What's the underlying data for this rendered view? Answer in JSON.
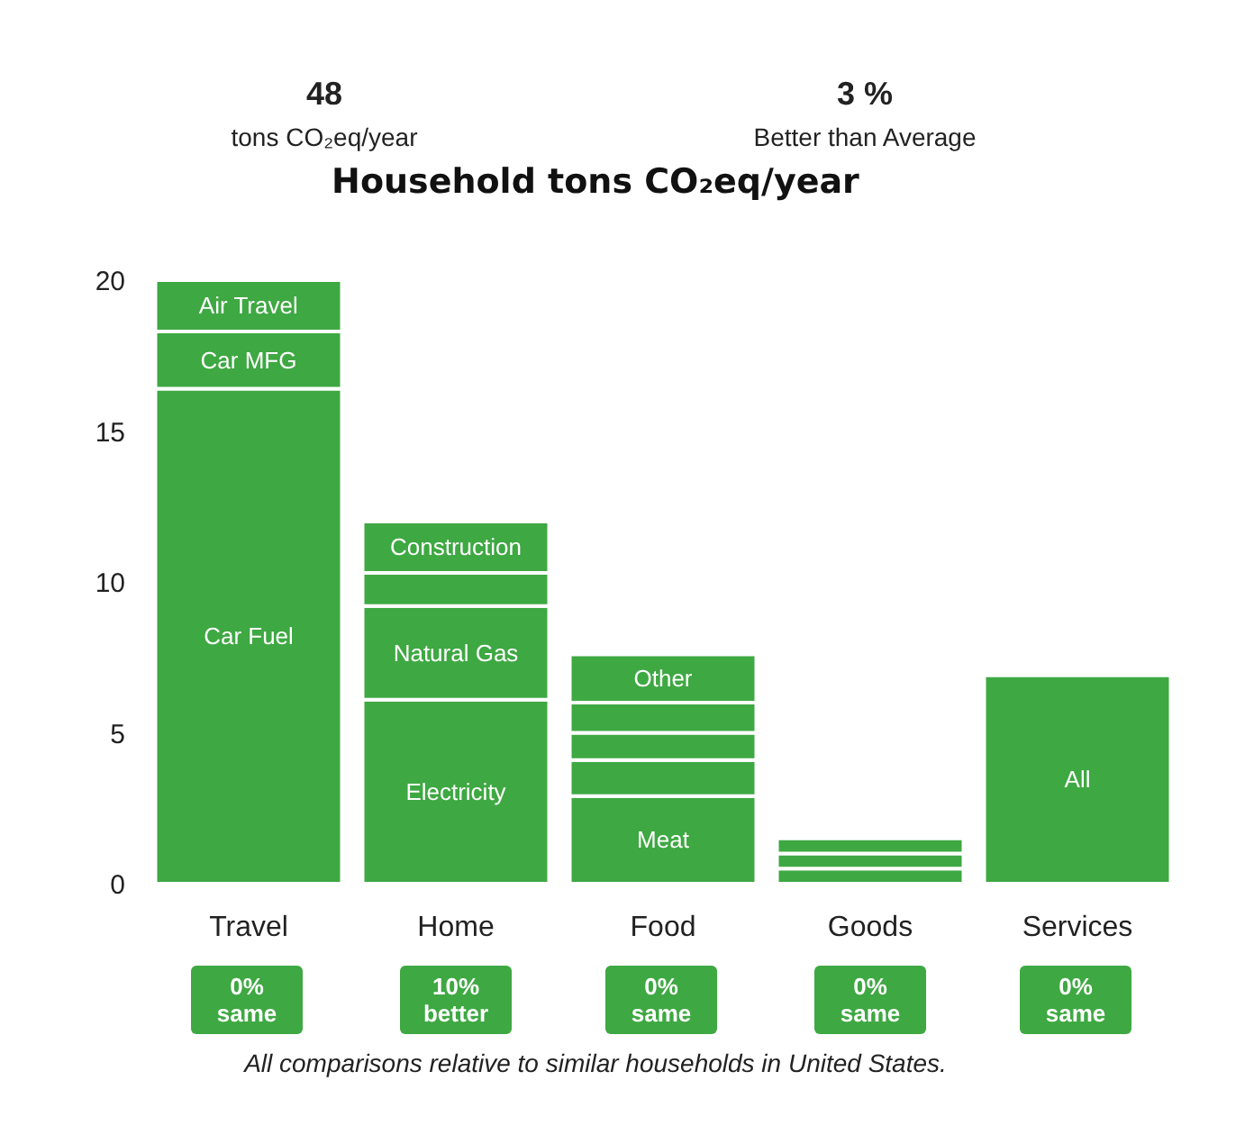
{
  "chart_data": {
    "type": "bar",
    "title": "Household tons CO₂eq/year",
    "stacked": true,
    "categories": [
      "Travel",
      "Home",
      "Food",
      "Goods",
      "Services"
    ],
    "series": [
      {
        "name": "Car Fuel",
        "color": "#3ea842",
        "values": [
          16.4,
          null,
          null,
          null,
          null
        ]
      },
      {
        "name": "Car MFG",
        "color": "#3ea842",
        "values": [
          1.9,
          null,
          null,
          null,
          null
        ]
      },
      {
        "name": "Air Travel",
        "color": "#3ea842",
        "values": [
          1.7,
          null,
          null,
          null,
          null
        ]
      },
      {
        "name": "Electricity",
        "color": "#3ea842",
        "values": [
          null,
          6.1,
          null,
          null,
          null
        ]
      },
      {
        "name": "Natural Gas",
        "color": "#3ea842",
        "values": [
          null,
          3.1,
          null,
          null,
          null
        ]
      },
      {
        "color": "#3ea842",
        "values": [
          null,
          1.1,
          null,
          null,
          null
        ]
      },
      {
        "name": "Construction",
        "color": "#3ea842",
        "values": [
          null,
          1.7,
          null,
          null,
          null
        ]
      },
      {
        "name": "Meat",
        "color": "#3ea842",
        "values": [
          null,
          null,
          2.9,
          null,
          null
        ]
      },
      {
        "color": "#3ea842",
        "values": [
          null,
          null,
          1.2,
          null,
          null
        ]
      },
      {
        "color": "#3ea842",
        "values": [
          null,
          null,
          0.9,
          null,
          null
        ]
      },
      {
        "color": "#3ea842",
        "values": [
          null,
          null,
          1.0,
          null,
          null
        ]
      },
      {
        "name": "Other",
        "color": "#3ea842",
        "values": [
          null,
          null,
          1.6,
          null,
          null
        ]
      },
      {
        "color": "#3ea842",
        "values": [
          null,
          null,
          null,
          0.5,
          null
        ]
      },
      {
        "color": "#3ea842",
        "values": [
          null,
          null,
          null,
          0.5,
          null
        ]
      },
      {
        "color": "#3ea842",
        "values": [
          null,
          null,
          null,
          0.5,
          null
        ]
      },
      {
        "name": "All",
        "color": "#3ea842",
        "values": [
          null,
          null,
          null,
          null,
          6.9
        ]
      }
    ],
    "ylim": [
      0,
      20
    ],
    "yticks": [
      0,
      5,
      10,
      15,
      20
    ],
    "grid": false,
    "annotations": [
      "48",
      "tons CO₂eq/year",
      "3 %",
      "Better than Average",
      "0% same",
      "10% better",
      "0% same",
      "0% same",
      "0% same",
      "All comparisons relative to similar households in United States."
    ]
  }
}
